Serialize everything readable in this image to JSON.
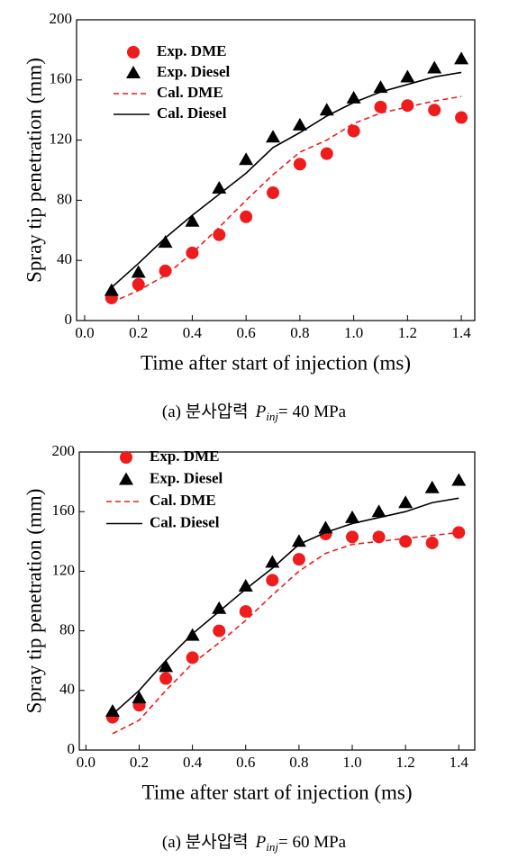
{
  "chart_data": [
    {
      "type": "line",
      "x_label": "Time after start of injection (ms)",
      "y_label": "Spray tip penetration (mm)",
      "caption_prefix": "(a)  분사압력",
      "caption_symbol": "P",
      "caption_subscript": "inj",
      "caption_suffix": "= 40  MPa",
      "x": [
        0.1,
        0.2,
        0.3,
        0.4,
        0.5,
        0.6,
        0.7,
        0.8,
        0.9,
        1.0,
        1.1,
        1.2,
        1.3,
        1.4
      ],
      "xlim": [
        -0.03,
        1.45
      ],
      "xticks": [
        {
          "value": 0,
          "label": "0.0"
        },
        0.2,
        0.4,
        0.6,
        0.8,
        {
          "value": 1,
          "label": "1.0"
        },
        1.2,
        1.4
      ],
      "ylim": [
        0,
        200
      ],
      "yticks": [
        0,
        40,
        80,
        120,
        160,
        200
      ],
      "legend": "upper left",
      "series": [
        {
          "name": "Exp. DME",
          "color": "#ee1c1c",
          "marker": "circle",
          "values": [
            15,
            24,
            33,
            45,
            57,
            69,
            85,
            104,
            111,
            126,
            142,
            143,
            140,
            135
          ]
        },
        {
          "name": "Exp. Diesel",
          "color": "#000000",
          "marker": "triangle",
          "values": [
            20,
            32,
            52,
            66,
            88,
            107,
            122,
            130,
            140,
            148,
            155,
            162,
            168,
            174
          ]
        },
        {
          "name": "Cal. DME",
          "color": "#ee1c1c",
          "line": "dashed",
          "values": [
            12,
            20,
            30,
            45,
            62,
            80,
            97,
            112,
            120,
            131,
            138,
            142,
            146,
            149
          ]
        },
        {
          "name": "Cal. Diesel",
          "color": "#000000",
          "line": "solid",
          "values": [
            22,
            38,
            55,
            70,
            84,
            98,
            115,
            125,
            136,
            145,
            152,
            157,
            162,
            165
          ]
        }
      ]
    },
    {
      "type": "line",
      "x_label": "Time after start of injection (ms)",
      "y_label": "Spray tip penetration (mm)",
      "caption_prefix": "(a)  분사압력",
      "caption_symbol": "P",
      "caption_subscript": "inj",
      "caption_suffix": "= 60  MPa",
      "x": [
        0.1,
        0.2,
        0.3,
        0.4,
        0.5,
        0.6,
        0.7,
        0.8,
        0.9,
        1.0,
        1.1,
        1.2,
        1.3,
        1.4
      ],
      "xlim": [
        -0.025,
        1.46
      ],
      "xticks": [
        {
          "value": 0,
          "label": "0.0"
        },
        0.2,
        0.4,
        0.6,
        0.8,
        {
          "value": 1,
          "label": "1.0"
        },
        1.2,
        1.4
      ],
      "ylim": [
        0,
        200
      ],
      "yticks": [
        0,
        40,
        80,
        120,
        160,
        200
      ],
      "legend": "upper left",
      "series": [
        {
          "name": "Exp. DME",
          "color": "#ee1c1c",
          "marker": "circle",
          "values": [
            22,
            30,
            48,
            62,
            80,
            93,
            114,
            128,
            145,
            143,
            143,
            140,
            139,
            146
          ]
        },
        {
          "name": "Exp. Diesel",
          "color": "#000000",
          "marker": "triangle",
          "values": [
            26,
            35,
            56,
            77,
            95,
            110,
            126,
            140,
            149,
            156,
            160,
            166,
            176,
            181
          ]
        },
        {
          "name": "Cal. DME",
          "color": "#ee1c1c",
          "line": "dashed",
          "values": [
            11,
            20,
            40,
            58,
            72,
            87,
            104,
            120,
            132,
            138,
            140,
            142,
            144,
            146
          ]
        },
        {
          "name": "Cal. Diesel",
          "color": "#000000",
          "line": "solid",
          "values": [
            24,
            40,
            60,
            78,
            93,
            108,
            122,
            138,
            146,
            152,
            156,
            160,
            166,
            169
          ]
        }
      ]
    }
  ]
}
